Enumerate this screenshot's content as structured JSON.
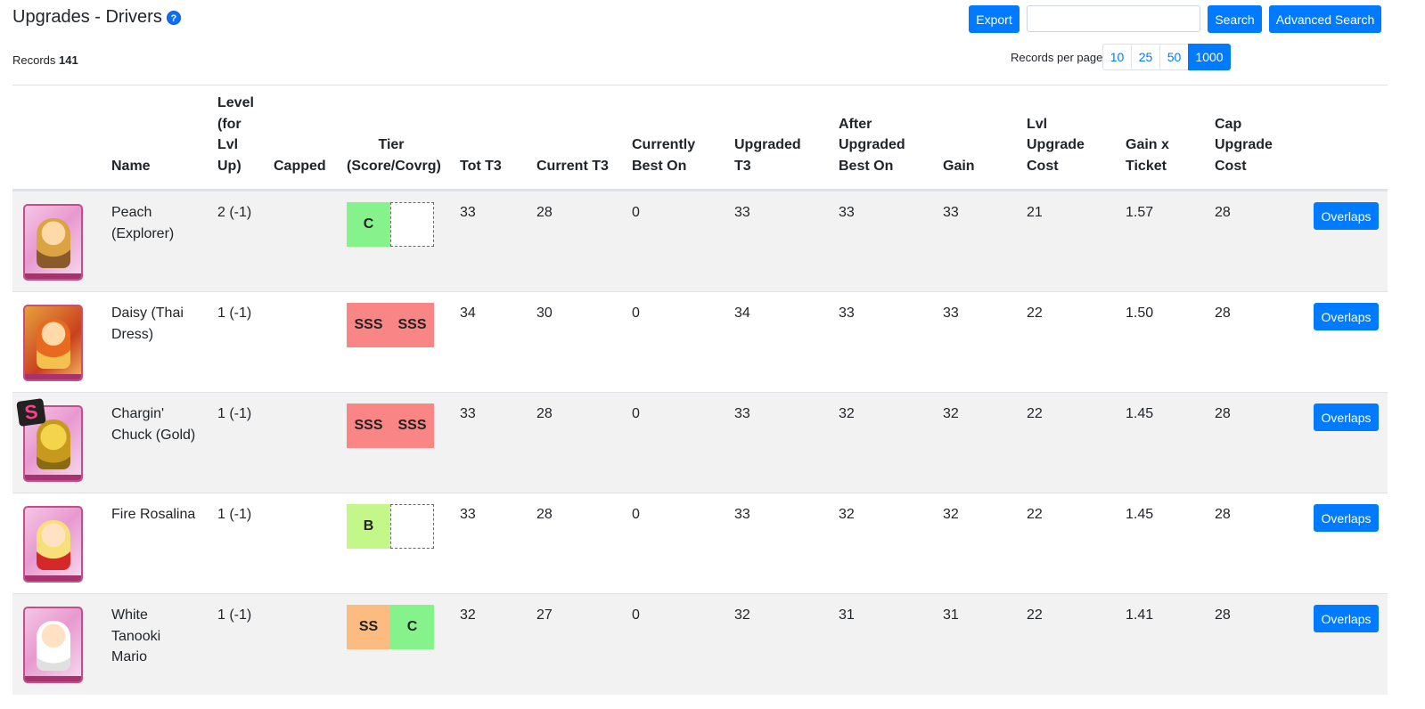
{
  "header": {
    "title": "Upgrades - Drivers",
    "help_glyph": "?",
    "records_label": "Records",
    "records_count": "141"
  },
  "toolbar": {
    "export_label": "Export",
    "search_value": "",
    "search_label": "Search",
    "advanced_search_label": "Advanced Search",
    "records_per_page_label": "Records per page",
    "page_sizes": [
      "10",
      "25",
      "50",
      "1000"
    ],
    "active_page_size": "1000"
  },
  "columns": {
    "name": "Name",
    "level": "Level (for Lvl Up)",
    "capped": "Capped",
    "tier": "Tier (Score/Covrg)",
    "tot_t3": "Tot T3",
    "current_t3": "Current T3",
    "currently_best_on": "Currently Best On",
    "upgraded_t3": "Upgraded T3",
    "after_upgraded_best_on": "After Upgraded Best On",
    "gain": "Gain",
    "lvl_upgrade_cost": "Lvl Upgrade Cost",
    "gain_x_ticket": "Gain x Ticket",
    "cap_upgrade_cost": "Cap Upgrade Cost"
  },
  "colors": {
    "accent": "#007bff",
    "tier_C": "#85f28b",
    "tier_SSS": "#f98585",
    "tier_B": "#c4f78a",
    "tier_SS": "#fcbb80"
  },
  "rows": [
    {
      "name": "Peach (Explorer)",
      "level": "2 (-1)",
      "capped": "",
      "tier_score": "C",
      "tier_coverage": "",
      "tot_t3": "33",
      "current_t3": "28",
      "currently_best_on": "0",
      "upgraded_t3": "33",
      "after_best_on": "33",
      "gain": "33",
      "lvl_cost": "21",
      "gain_x_ticket": "1.57",
      "cap_cost": "28",
      "action": "Overlaps",
      "badge": ""
    },
    {
      "name": "Daisy (Thai Dress)",
      "level": "1 (-1)",
      "capped": "",
      "tier_score": "SSS",
      "tier_coverage": "SSS",
      "tot_t3": "34",
      "current_t3": "30",
      "currently_best_on": "0",
      "upgraded_t3": "34",
      "after_best_on": "33",
      "gain": "33",
      "lvl_cost": "22",
      "gain_x_ticket": "1.50",
      "cap_cost": "28",
      "action": "Overlaps",
      "badge": ""
    },
    {
      "name": "Chargin' Chuck (Gold)",
      "level": "1 (-1)",
      "capped": "",
      "tier_score": "SSS",
      "tier_coverage": "SSS",
      "tot_t3": "33",
      "current_t3": "28",
      "currently_best_on": "0",
      "upgraded_t3": "33",
      "after_best_on": "32",
      "gain": "32",
      "lvl_cost": "22",
      "gain_x_ticket": "1.45",
      "cap_cost": "28",
      "action": "Overlaps",
      "badge": "S"
    },
    {
      "name": "Fire Rosalina",
      "level": "1 (-1)",
      "capped": "",
      "tier_score": "B",
      "tier_coverage": "",
      "tot_t3": "33",
      "current_t3": "28",
      "currently_best_on": "0",
      "upgraded_t3": "33",
      "after_best_on": "32",
      "gain": "32",
      "lvl_cost": "22",
      "gain_x_ticket": "1.45",
      "cap_cost": "28",
      "action": "Overlaps",
      "badge": ""
    },
    {
      "name": "White Tanooki Mario",
      "level": "1 (-1)",
      "capped": "",
      "tier_score": "SS",
      "tier_coverage": "C",
      "tot_t3": "32",
      "current_t3": "27",
      "currently_best_on": "0",
      "upgraded_t3": "32",
      "after_best_on": "31",
      "gain": "31",
      "lvl_cost": "22",
      "gain_x_ticket": "1.41",
      "cap_cost": "28",
      "action": "Overlaps",
      "badge": ""
    }
  ]
}
